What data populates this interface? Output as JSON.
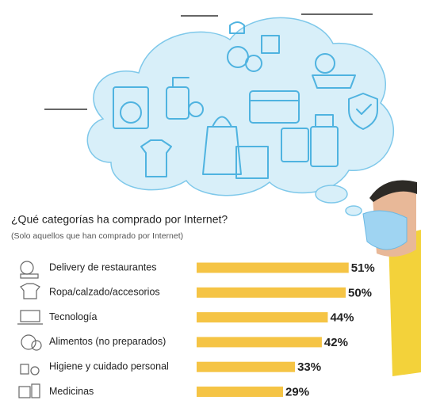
{
  "chart_data": {
    "type": "bar",
    "orientation": "horizontal",
    "title": "¿Qué categorías ha comprado por Internet?",
    "subtitle": "(Solo aquellos que han comprado por Internet)",
    "categories": [
      "Delivery de restaurantes",
      "Ropa/calzado/accesorios",
      "Tecnología",
      "Alimentos (no preparados)",
      "Higiene y cuidado personal",
      "Medicinas"
    ],
    "values": [
      51,
      50,
      44,
      42,
      33,
      29
    ],
    "value_labels": [
      "51%",
      "50%",
      "44%",
      "42%",
      "33%",
      "29%"
    ],
    "color": "#f5c445"
  }
}
